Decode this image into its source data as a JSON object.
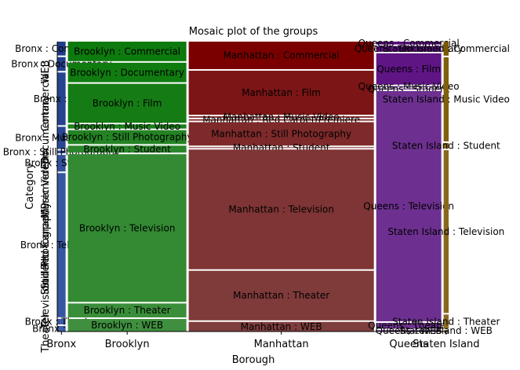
{
  "chart_data": {
    "type": "mosaic",
    "title": "Mosaic plot of the groups",
    "xlabel": "Borough",
    "ylabel": "Category",
    "x_categories": [
      "Bronx",
      "Brooklyn",
      "Manhattan",
      "Queens",
      "Staten Island"
    ],
    "y_categories": [
      "Commercial",
      "Documentary",
      "Film",
      "Music Video",
      "Red Carpet/Premiere",
      "Still Photography",
      "Student",
      "Television",
      "Theater",
      "WEB"
    ],
    "y_tick_labels": [
      "Theater",
      "Television",
      "Student",
      "Still Photography",
      "Red Carpet/Premiere",
      "Music Video",
      "Film",
      "Documentary",
      "Commercial",
      "WEB"
    ],
    "borough_share": [
      0.025,
      0.355,
      0.555,
      0.195,
      0.015
    ],
    "proportions": {
      "Bronx": [
        0.05,
        0.05,
        0.19,
        0.08,
        0.0,
        0.01,
        0.06,
        0.52,
        0.02,
        0.02
      ],
      "Brooklyn": [
        0.07,
        0.07,
        0.14,
        0.015,
        0.0,
        0.05,
        0.025,
        0.53,
        0.05,
        0.045
      ],
      "Manhattan": [
        0.1,
        0.0,
        0.16,
        0.005,
        0.005,
        0.085,
        0.003,
        0.435,
        0.18,
        0.035
      ],
      "Queens": [
        0.01,
        0.02,
        0.11,
        0.003,
        0.0,
        0.0,
        0.003,
        0.81,
        0.02,
        0.005
      ],
      "Staten Island": [
        0.05,
        0.0,
        0.0,
        0.3,
        0.0,
        0.0,
        0.02,
        0.58,
        0.05,
        0.005
      ]
    },
    "labels": {
      "Bronx": [
        "Bronx : Commercial",
        "Bronx : Documentary",
        "Bronx : Film",
        "Bronx : Music Video",
        "",
        "Bronx : Still Photography",
        "Bronx : Student",
        "Bronx : Television",
        "Bronx : Theater",
        "Bronx : WEB"
      ],
      "Brooklyn": [
        "Brooklyn : Commercial",
        "Brooklyn : Documentary",
        "Brooklyn : Film",
        "Brooklyn : Music Video",
        "",
        "Brooklyn : Still Photography",
        "Brooklyn : Student",
        "Brooklyn : Television",
        "Brooklyn : Theater",
        "Brooklyn : WEB"
      ],
      "Manhattan": [
        "Manhattan : Commercial",
        "Manhattan : Documentary",
        "Manhattan : Film",
        "Manhattan : Music Video",
        "Manhattan : Red Carpet/Premiere",
        "Manhattan : Still Photography",
        "Manhattan : Student",
        "Manhattan : Television",
        "Manhattan : Theater",
        "Manhattan : WEB"
      ],
      "Queens": [
        "Queens : Commercial",
        "Queens : Documentary",
        "Queens : Film",
        "Queens : Music Video",
        "",
        "",
        "Queens : Student",
        "Queens : Television",
        "Queens : Theater",
        "Queens : WEB"
      ],
      "Staten Island": [
        "Staten Island : Commercial",
        "",
        "Staten Island : Film",
        "Staten Island : Music Video",
        "",
        "",
        "Staten Island : Student",
        "Staten Island : Television",
        "Staten Island : Theater",
        "Staten Island : WEB"
      ]
    },
    "colors": {
      "Bronx": [
        "#1f3c88",
        "#223f8c",
        "#25438f",
        "#294793",
        "#2c4a96",
        "#2f4e99",
        "#33529d",
        "#3656a0",
        "#3a5aa4",
        "#3d5ea8"
      ],
      "Brooklyn": [
        "#0d7a0d",
        "#107c10",
        "#157c15",
        "#1b7f1b",
        "#1f801f",
        "#248324",
        "#2b862b",
        "#338a33",
        "#3a8e3a",
        "#3f8f3f"
      ],
      "Manhattan": [
        "#7a0000",
        "#7a0c0c",
        "#7c1515",
        "#7c1e1e",
        "#7d2424",
        "#7e2a2a",
        "#7e3030",
        "#7f3535",
        "#7f3a3a",
        "#7f3e3e"
      ],
      "Queens": [
        "#5b0a80",
        "#5d0f82",
        "#601585",
        "#621b87",
        "#64208a",
        "#67268c",
        "#6a2c8e",
        "#6d3090",
        "#703592",
        "#733994"
      ],
      "Staten Island": [
        "#7a5a00",
        "#7c5c05",
        "#7e5e0a",
        "#80600d",
        "#826210",
        "#846414",
        "#866618",
        "#88681c",
        "#8a6a20",
        "#8c6c24"
      ]
    },
    "show_grid": false,
    "legend": "none"
  }
}
